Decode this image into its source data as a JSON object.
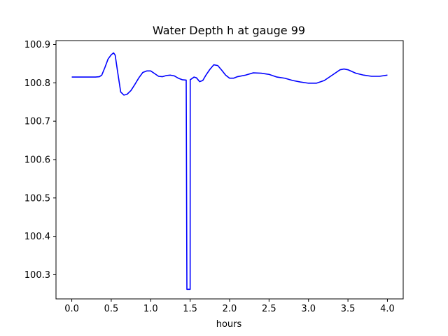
{
  "chart_data": {
    "type": "line",
    "title": "Water Depth h at gauge 99",
    "xlabel": "hours",
    "ylabel": "",
    "xlim": [
      -0.2,
      4.2
    ],
    "ylim": [
      100.237,
      100.91
    ],
    "grid": false,
    "legend": "none",
    "x_ticks": [
      0.0,
      0.5,
      1.0,
      1.5,
      2.0,
      2.5,
      3.0,
      3.5,
      4.0
    ],
    "x_tick_labels": [
      "0.0",
      "0.5",
      "1.0",
      "1.5",
      "2.0",
      "2.5",
      "3.0",
      "3.5",
      "4.0"
    ],
    "y_ticks": [
      100.3,
      100.4,
      100.5,
      100.6,
      100.7,
      100.8,
      100.9
    ],
    "y_tick_labels": [
      "100.3",
      "100.4",
      "100.5",
      "100.6",
      "100.7",
      "100.8",
      "100.9"
    ],
    "series": [
      {
        "color": "#0000ff",
        "x": [
          0.0,
          0.1,
          0.2,
          0.3,
          0.35,
          0.38,
          0.42,
          0.46,
          0.5,
          0.53,
          0.55,
          0.58,
          0.62,
          0.66,
          0.7,
          0.75,
          0.8,
          0.85,
          0.9,
          0.95,
          1.0,
          1.05,
          1.1,
          1.15,
          1.2,
          1.25,
          1.3,
          1.35,
          1.4,
          1.45,
          1.459,
          1.46,
          1.5,
          1.501,
          1.55,
          1.58,
          1.62,
          1.66,
          1.7,
          1.75,
          1.8,
          1.85,
          1.9,
          1.95,
          2.0,
          2.05,
          2.1,
          2.2,
          2.3,
          2.4,
          2.5,
          2.6,
          2.7,
          2.8,
          2.9,
          3.0,
          3.1,
          3.2,
          3.3,
          3.4,
          3.45,
          3.5,
          3.6,
          3.7,
          3.8,
          3.9,
          4.0
        ],
        "y": [
          100.815,
          100.815,
          100.815,
          100.815,
          100.816,
          100.82,
          100.84,
          100.862,
          100.873,
          100.878,
          100.872,
          100.83,
          100.776,
          100.768,
          100.77,
          100.78,
          100.796,
          100.813,
          100.827,
          100.831,
          100.831,
          100.824,
          100.817,
          100.816,
          100.819,
          100.82,
          100.818,
          100.812,
          100.808,
          100.807,
          100.262,
          100.262,
          100.262,
          100.808,
          100.815,
          100.813,
          100.803,
          100.806,
          100.82,
          100.835,
          100.847,
          100.845,
          100.833,
          100.82,
          100.812,
          100.812,
          100.816,
          100.82,
          100.826,
          100.825,
          100.822,
          100.815,
          100.812,
          100.806,
          100.802,
          100.799,
          100.799,
          100.806,
          100.82,
          100.834,
          100.836,
          100.834,
          100.825,
          100.82,
          100.817,
          100.817,
          100.82
        ]
      }
    ]
  }
}
